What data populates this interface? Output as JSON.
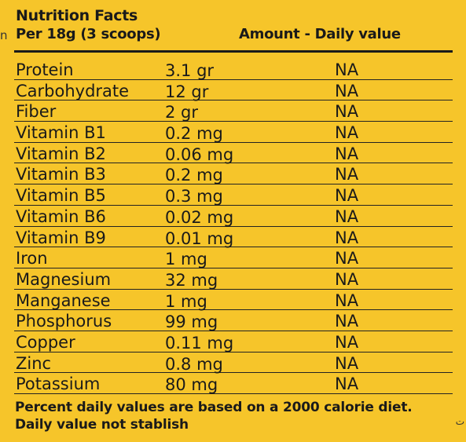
{
  "edge_left": "n",
  "edge_right": "ت",
  "header": {
    "title": "Nutrition Facts",
    "per": "Per 18g (3 scoops)",
    "amount": "Amount - Daily value"
  },
  "rows": [
    {
      "name": "Protein",
      "amount": "3.1 gr",
      "dv": "NA"
    },
    {
      "name": "Carbohydrate",
      "amount": "12 gr",
      "dv": "NA"
    },
    {
      "name": "Fiber",
      "amount": "2 gr",
      "dv": "NA"
    },
    {
      "name": "Vitamin B1",
      "amount": "0.2 mg",
      "dv": "NA"
    },
    {
      "name": "Vitamin B2",
      "amount": "0.06 mg",
      "dv": "NA"
    },
    {
      "name": "Vitamin B3",
      "amount": "0.2 mg",
      "dv": "NA"
    },
    {
      "name": "Vitamin B5",
      "amount": "0.3 mg",
      "dv": "NA"
    },
    {
      "name": "Vitamin B6",
      "amount": "0.02 mg",
      "dv": "NA"
    },
    {
      "name": "Vitamin B9",
      "amount": "0.01 mg",
      "dv": "NA"
    },
    {
      "name": "Iron",
      "amount": "1 mg",
      "dv": "NA"
    },
    {
      "name": "Magnesium",
      "amount": "32 mg",
      "dv": "NA"
    },
    {
      "name": "Manganese",
      "amount": "1 mg",
      "dv": "NA"
    },
    {
      "name": "Phosphorus",
      "amount": "99 mg",
      "dv": "NA"
    },
    {
      "name": "Copper",
      "amount": "0.11 mg",
      "dv": "NA"
    },
    {
      "name": "Zinc",
      "amount": "0.8 mg",
      "dv": "NA"
    },
    {
      "name": "Potassium",
      "amount": "80 mg",
      "dv": "NA"
    }
  ],
  "footer": {
    "line1": "Percent daily values are based on a 2000 calorie diet.",
    "line2": "Daily value not stablish"
  },
  "colors": {
    "background": "#f6c52a",
    "text": "#1a1a1a"
  }
}
